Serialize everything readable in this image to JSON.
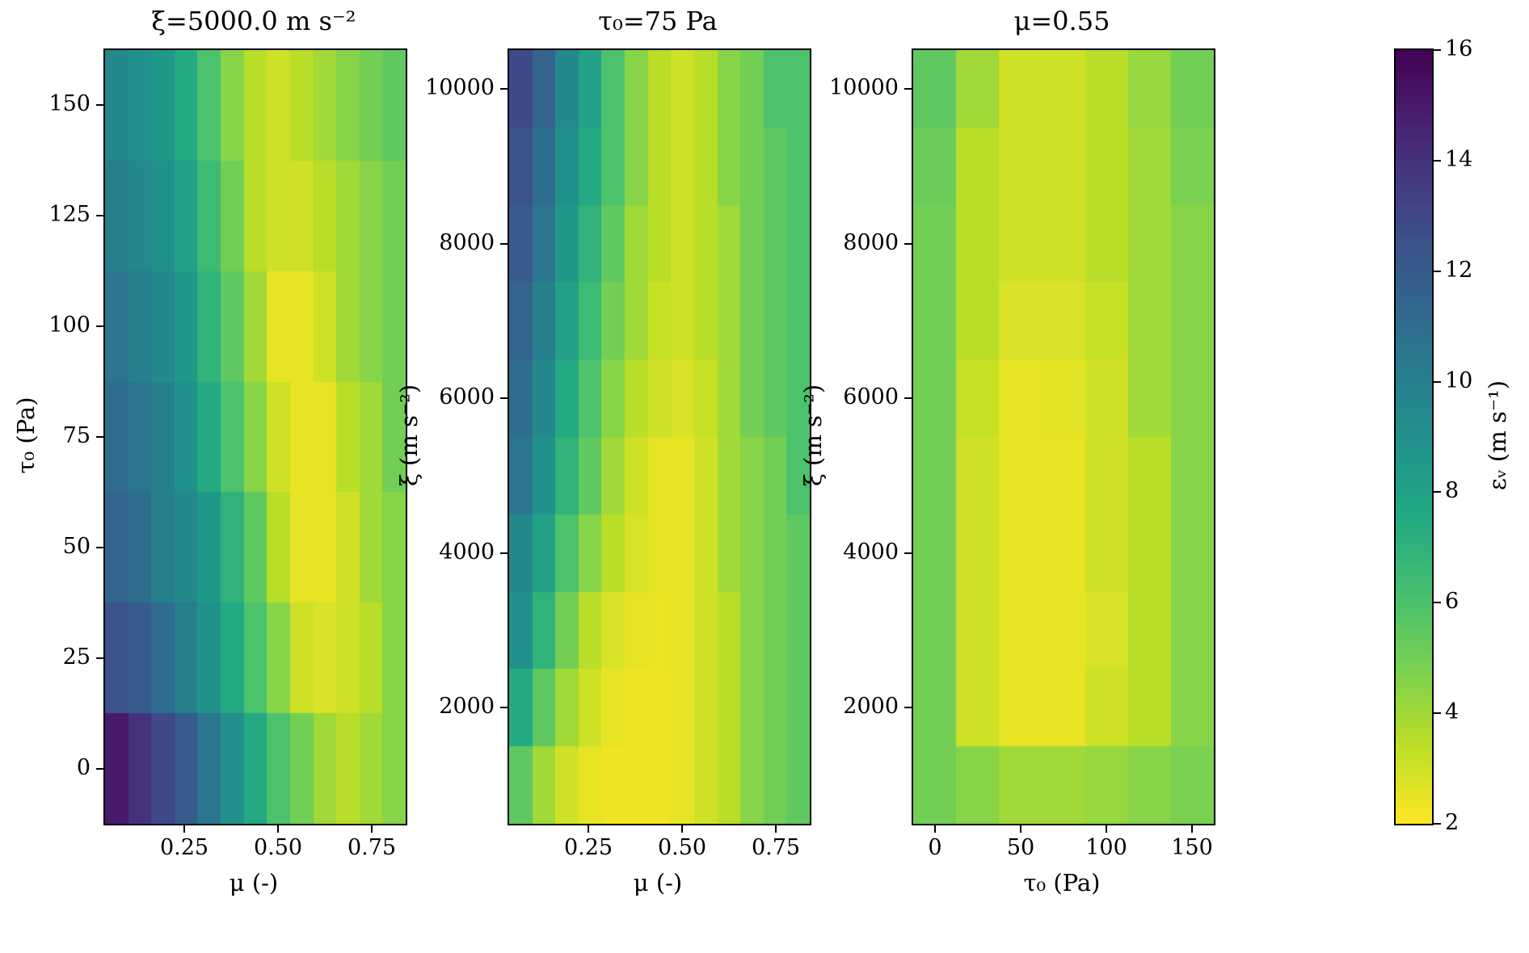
{
  "figure": {
    "background": "#ffffff",
    "colorbar": {
      "label": "εᵥ (m s⁻¹)",
      "vmin": 2,
      "vmax": 16,
      "ticks": [
        2,
        4,
        6,
        8,
        10,
        12,
        14,
        16
      ],
      "ticklabels": [
        "2",
        "4",
        "6",
        "8",
        "10",
        "12",
        "14",
        "16"
      ],
      "colormap": "viridis reversed (low value = yellow, high value = dark purple)"
    }
  },
  "chart_data": [
    {
      "type": "heatmap",
      "title": "ξ=5000.0 m s⁻²",
      "xlabel": "μ (-)",
      "ylabel": "τ₀ (Pa)",
      "grid": false,
      "x": [
        0.07,
        0.13,
        0.19,
        0.25,
        0.32,
        0.38,
        0.44,
        0.5,
        0.56,
        0.62,
        0.69,
        0.75,
        0.81
      ],
      "y": [
        0,
        25,
        50,
        75,
        100,
        125,
        150
      ],
      "xlim": [
        0.04,
        0.84
      ],
      "ylim": [
        -12.5,
        162.5
      ],
      "xticks": [
        0.25,
        0.5,
        0.75
      ],
      "xticklabels": [
        "0.25",
        "0.50",
        "0.75"
      ],
      "yticks": [
        0,
        25,
        50,
        75,
        100,
        125,
        150
      ],
      "yticklabels": [
        "0",
        "25",
        "50",
        "75",
        "100",
        "125",
        "150"
      ],
      "row_order": "bottom-to-top",
      "values": [
        [
          15,
          14,
          13,
          12,
          10.5,
          9,
          7.5,
          6,
          5,
          4,
          3.5,
          4,
          4.5
        ],
        [
          12.5,
          12,
          11,
          10,
          9,
          7.5,
          6,
          4.5,
          3,
          2.8,
          3,
          3.5,
          4.5
        ],
        [
          11.5,
          11,
          10,
          9.5,
          8.5,
          7,
          5.5,
          3.5,
          2.5,
          2.5,
          3,
          4,
          4.5
        ],
        [
          11,
          10.5,
          10,
          9,
          7.5,
          6,
          4.5,
          3,
          2.5,
          2.5,
          3.5,
          4,
          5
        ],
        [
          10.5,
          10,
          9.5,
          8.5,
          7,
          5.5,
          4,
          2.5,
          2.5,
          3,
          4,
          4.5,
          5
        ],
        [
          10,
          9.5,
          9,
          8,
          6.5,
          5,
          3.5,
          3,
          3,
          3.5,
          4,
          4.5,
          5
        ],
        [
          9.5,
          9,
          8.5,
          7.5,
          6,
          4.5,
          3.5,
          3,
          3.5,
          4,
          4.5,
          5,
          5.5
        ]
      ]
    },
    {
      "type": "heatmap",
      "title": "τ₀=75 Pa",
      "xlabel": "μ (-)",
      "ylabel": "ξ (m s⁻²)",
      "grid": false,
      "x": [
        0.07,
        0.13,
        0.19,
        0.25,
        0.32,
        0.38,
        0.44,
        0.5,
        0.56,
        0.62,
        0.69,
        0.75,
        0.81
      ],
      "y": [
        1000,
        2000,
        3000,
        4000,
        5000,
        6000,
        7000,
        8000,
        9000,
        10000
      ],
      "xlim": [
        0.04,
        0.84
      ],
      "ylim": [
        500,
        10500
      ],
      "xticks": [
        0.25,
        0.5,
        0.75
      ],
      "xticklabels": [
        "0.25",
        "0.50",
        "0.75"
      ],
      "yticks": [
        2000,
        4000,
        6000,
        8000,
        10000
      ],
      "yticklabels": [
        "2000",
        "4000",
        "6000",
        "8000",
        "10000"
      ],
      "row_order": "bottom-to-top",
      "values": [
        [
          5.5,
          4,
          3,
          2.5,
          2.3,
          2.3,
          2.3,
          2.5,
          3,
          3.5,
          4.5,
          5,
          5.5
        ],
        [
          7.5,
          5.5,
          4,
          3,
          2.5,
          2.3,
          2.3,
          2.5,
          3,
          3.5,
          4.5,
          5,
          5.5
        ],
        [
          9,
          7,
          5,
          3.5,
          2.8,
          2.5,
          2.4,
          2.5,
          3,
          3.5,
          4.5,
          5,
          5.5
        ],
        [
          9.5,
          8,
          6,
          4.5,
          3.5,
          2.8,
          2.5,
          2.5,
          3,
          4,
          4.5,
          5,
          5.5
        ],
        [
          10.5,
          9,
          7,
          5.5,
          4,
          3,
          2.5,
          2.5,
          3,
          4,
          4.5,
          5,
          6
        ],
        [
          11,
          9.5,
          7.5,
          6,
          4.5,
          3.5,
          3,
          2.8,
          3.2,
          4,
          5,
          5.5,
          6
        ],
        [
          11.5,
          10,
          8,
          6.5,
          5,
          4,
          3.2,
          3,
          3.5,
          4,
          5,
          5.5,
          6
        ],
        [
          12,
          10.5,
          8.5,
          7,
          5.5,
          4,
          3.5,
          3,
          3.5,
          4,
          5,
          5.5,
          6
        ],
        [
          12.5,
          11,
          9,
          7.5,
          6,
          4.5,
          3.5,
          3,
          3.5,
          4.5,
          5,
          5.5,
          6
        ],
        [
          13,
          11.5,
          9.5,
          8,
          6,
          4.5,
          3.5,
          3,
          3.5,
          4.5,
          5,
          6,
          6
        ]
      ]
    },
    {
      "type": "heatmap",
      "title": "μ=0.55",
      "xlabel": "τ₀ (Pa)",
      "ylabel": "ξ (m s⁻²)",
      "grid": false,
      "x": [
        0,
        25,
        50,
        75,
        100,
        125,
        150
      ],
      "y": [
        1000,
        2000,
        3000,
        4000,
        5000,
        6000,
        7000,
        8000,
        9000,
        10000
      ],
      "xlim": [
        -12.5,
        162.5
      ],
      "ylim": [
        500,
        10500
      ],
      "xticks": [
        0,
        50,
        100,
        150
      ],
      "xticklabels": [
        "0",
        "50",
        "100",
        "150"
      ],
      "yticks": [
        2000,
        4000,
        6000,
        8000,
        10000
      ],
      "yticklabels": [
        "2000",
        "4000",
        "6000",
        "8000",
        "10000"
      ],
      "row_order": "bottom-to-top",
      "values": [
        [
          5,
          4.5,
          4,
          4,
          4.2,
          4.5,
          4.8
        ],
        [
          5,
          3,
          2.5,
          2.5,
          3,
          3.5,
          4.5
        ],
        [
          5,
          3,
          2.5,
          2.5,
          2.8,
          3.5,
          4.5
        ],
        [
          5,
          3,
          2.5,
          2.5,
          3,
          3.5,
          4.5
        ],
        [
          5,
          3,
          2.5,
          2.5,
          3,
          3.5,
          4.5
        ],
        [
          5,
          3.2,
          2.5,
          2.6,
          3,
          4,
          4.5
        ],
        [
          5,
          3.5,
          2.8,
          2.8,
          3.2,
          4,
          4.5
        ],
        [
          5,
          3.5,
          3,
          3,
          3.5,
          4,
          4.5
        ],
        [
          5.2,
          3.5,
          3,
          3,
          3.5,
          4,
          4.8
        ],
        [
          5.5,
          4,
          3,
          3,
          3.5,
          4.2,
          5
        ]
      ]
    }
  ]
}
